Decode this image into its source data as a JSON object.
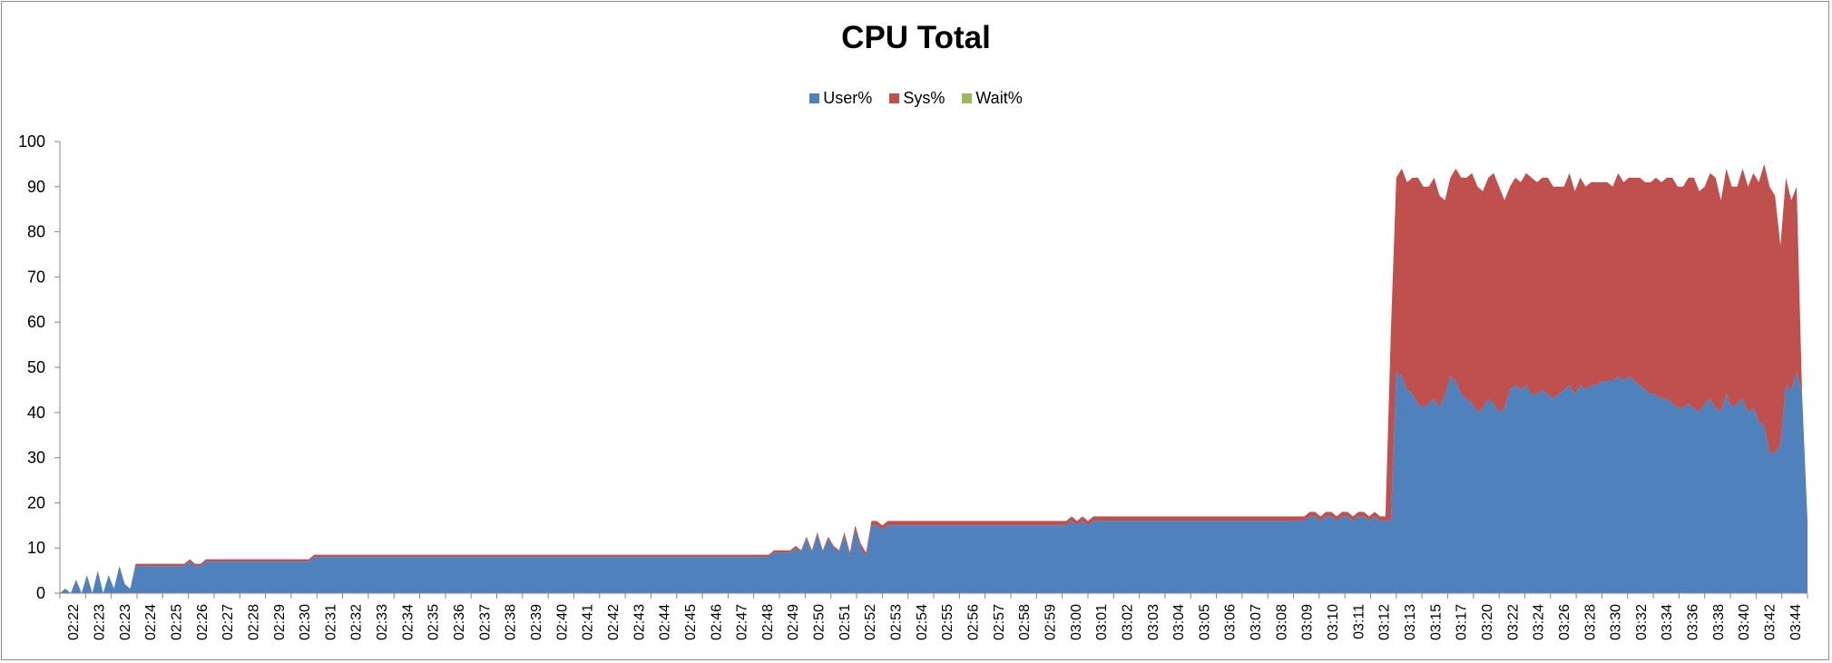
{
  "chart_data": {
    "type": "area",
    "stacked": true,
    "title": "CPU Total",
    "xlabel": "",
    "ylabel": "",
    "ylim": [
      0,
      100
    ],
    "yticks": [
      0,
      10,
      20,
      30,
      40,
      50,
      60,
      70,
      80,
      90,
      100
    ],
    "legend_position": "top-center",
    "grid": false,
    "x_tick_labels": [
      "02:22",
      "02:23",
      "02:23",
      "02:24",
      "02:25",
      "02:26",
      "02:27",
      "02:28",
      "02:29",
      "02:30",
      "02:31",
      "02:32",
      "02:33",
      "02:34",
      "02:35",
      "02:36",
      "02:37",
      "02:38",
      "02:39",
      "02:40",
      "02:41",
      "02:42",
      "02:43",
      "02:44",
      "02:45",
      "02:46",
      "02:47",
      "02:48",
      "02:49",
      "02:50",
      "02:51",
      "02:52",
      "02:53",
      "02:54",
      "02:55",
      "02:56",
      "02:57",
      "02:58",
      "02:59",
      "03:00",
      "03:01",
      "03:02",
      "03:03",
      "03:04",
      "03:05",
      "03:06",
      "03:07",
      "03:08",
      "03:09",
      "03:10",
      "03:11",
      "03:12",
      "03:13",
      "03:15",
      "03:17",
      "03:20",
      "03:22",
      "03:24",
      "03:26",
      "03:28",
      "03:30",
      "03:32",
      "03:34",
      "03:36",
      "03:38",
      "03:40",
      "03:42",
      "03:44"
    ],
    "series": [
      {
        "name": "User%",
        "color": "#4f81bd",
        "values": [
          0,
          1,
          0,
          3,
          0,
          4,
          0,
          5,
          0,
          4,
          1,
          6,
          2,
          1,
          6,
          6,
          6,
          6,
          6,
          6,
          6,
          6,
          6,
          6,
          7,
          6,
          6,
          7,
          7,
          7,
          7,
          7,
          7,
          7,
          7,
          7,
          7,
          7,
          7,
          7,
          7,
          7,
          7,
          7,
          7,
          7,
          7,
          8,
          8,
          8,
          8,
          8,
          8,
          8,
          8,
          8,
          8,
          8,
          8,
          8,
          8,
          8,
          8,
          8,
          8,
          8,
          8,
          8,
          8,
          8,
          8,
          8,
          8,
          8,
          8,
          8,
          8,
          8,
          8,
          8,
          8,
          8,
          8,
          8,
          8,
          8,
          8,
          8,
          8,
          8,
          8,
          8,
          8,
          8,
          8,
          8,
          8,
          8,
          8,
          8,
          8,
          8,
          8,
          8,
          8,
          8,
          8,
          8,
          8,
          8,
          8,
          8,
          8,
          8,
          8,
          8,
          8,
          8,
          8,
          8,
          8,
          8,
          8,
          8,
          8,
          8,
          8,
          8,
          8,
          8,
          8,
          8,
          9,
          9,
          9,
          9,
          10,
          9,
          12,
          9,
          13,
          9,
          12,
          10,
          9,
          13,
          8,
          14,
          10,
          8,
          15,
          15,
          14,
          15,
          15,
          15,
          15,
          15,
          15,
          15,
          15,
          15,
          15,
          15,
          15,
          15,
          15,
          15,
          15,
          15,
          15,
          15,
          15,
          15,
          15,
          15,
          15,
          15,
          15,
          15,
          15,
          15,
          15,
          15,
          15,
          15,
          15,
          16,
          15,
          16,
          15,
          16,
          16,
          16,
          16,
          16,
          16,
          16,
          16,
          16,
          16,
          16,
          16,
          16,
          16,
          16,
          16,
          16,
          16,
          16,
          16,
          16,
          16,
          16,
          16,
          16,
          16,
          16,
          16,
          16,
          16,
          16,
          16,
          16,
          16,
          16,
          16,
          16,
          16,
          16,
          16,
          17,
          17,
          16,
          17,
          17,
          16,
          17,
          17,
          16,
          17,
          17,
          16,
          17,
          16,
          16,
          16,
          49,
          48,
          45,
          44,
          42,
          41,
          42,
          43,
          41,
          44,
          48,
          47,
          44,
          43,
          42,
          40,
          41,
          43,
          42,
          40,
          41,
          45,
          46,
          45,
          46,
          44,
          44,
          45,
          44,
          43,
          44,
          45,
          46,
          44,
          46,
          45,
          46,
          46,
          47,
          47,
          47,
          48,
          47,
          48,
          47,
          46,
          45,
          44,
          44,
          43,
          43,
          42,
          41,
          41,
          42,
          41,
          40,
          42,
          43,
          41,
          40,
          44,
          41,
          42,
          43,
          40,
          41,
          38,
          37,
          31,
          31,
          33,
          46,
          45,
          49,
          44,
          16
        ]
      },
      {
        "name": "Sys%",
        "color": "#c0504d",
        "values": [
          0,
          0,
          0,
          0,
          0,
          0,
          0,
          0,
          0,
          0,
          0,
          0,
          0,
          0,
          0.5,
          0.5,
          0.5,
          0.5,
          0.5,
          0.5,
          0.5,
          0.5,
          0.5,
          0.5,
          0.5,
          0.5,
          0.5,
          0.5,
          0.5,
          0.5,
          0.5,
          0.5,
          0.5,
          0.5,
          0.5,
          0.5,
          0.5,
          0.5,
          0.5,
          0.5,
          0.5,
          0.5,
          0.5,
          0.5,
          0.5,
          0.5,
          0.5,
          0.5,
          0.5,
          0.5,
          0.5,
          0.5,
          0.5,
          0.5,
          0.5,
          0.5,
          0.5,
          0.5,
          0.5,
          0.5,
          0.5,
          0.5,
          0.5,
          0.5,
          0.5,
          0.5,
          0.5,
          0.5,
          0.5,
          0.5,
          0.5,
          0.5,
          0.5,
          0.5,
          0.5,
          0.5,
          0.5,
          0.5,
          0.5,
          0.5,
          0.5,
          0.5,
          0.5,
          0.5,
          0.5,
          0.5,
          0.5,
          0.5,
          0.5,
          0.5,
          0.5,
          0.5,
          0.5,
          0.5,
          0.5,
          0.5,
          0.5,
          0.5,
          0.5,
          0.5,
          0.5,
          0.5,
          0.5,
          0.5,
          0.5,
          0.5,
          0.5,
          0.5,
          0.5,
          0.5,
          0.5,
          0.5,
          0.5,
          0.5,
          0.5,
          0.5,
          0.5,
          0.5,
          0.5,
          0.5,
          0.5,
          0.5,
          0.5,
          0.5,
          0.5,
          0.5,
          0.5,
          0.5,
          0.5,
          0.5,
          0.5,
          0.5,
          0.5,
          0.5,
          0.5,
          0.5,
          0.5,
          0.5,
          0.5,
          0.5,
          0.5,
          0.5,
          0.5,
          0.5,
          0.5,
          0.5,
          1,
          1,
          1,
          1,
          1,
          1,
          1,
          1,
          1,
          1,
          1,
          1,
          1,
          1,
          1,
          1,
          1,
          1,
          1,
          1,
          1,
          1,
          1,
          1,
          1,
          1,
          1,
          1,
          1,
          1,
          1,
          1,
          1,
          1,
          1,
          1,
          1,
          1,
          1,
          1,
          1,
          1,
          1,
          1,
          1,
          1,
          1,
          1,
          1,
          1,
          1,
          1,
          1,
          1,
          1,
          1,
          1,
          1,
          1,
          1,
          1,
          1,
          1,
          1,
          1,
          1,
          1,
          1,
          1,
          1,
          1,
          1,
          1,
          1,
          1,
          1,
          1,
          1,
          1,
          1,
          1,
          1,
          1,
          1,
          1,
          1,
          1,
          1,
          1,
          1,
          1,
          1,
          1,
          1,
          1,
          1,
          1,
          1,
          1,
          1,
          42,
          43,
          46,
          46,
          48,
          50,
          49,
          48,
          49,
          47,
          43,
          44,
          47,
          48,
          49,
          51,
          50,
          48,
          49,
          51,
          50,
          46,
          45,
          46,
          46,
          47,
          48,
          47,
          47,
          48,
          47,
          46,
          45,
          47,
          45,
          46,
          45,
          45,
          45,
          44,
          44,
          43,
          45,
          44,
          44,
          45,
          46,
          46,
          47,
          48,
          48,
          49,
          50,
          49,
          49,
          50,
          51,
          49,
          48,
          50,
          51,
          47,
          50,
          49,
          48,
          51,
          50,
          52,
          53,
          58,
          59,
          57,
          44,
          46,
          42,
          41,
          0
        ]
      },
      {
        "name": "Wait%",
        "color": "#9bbb59",
        "values": []
      }
    ]
  }
}
